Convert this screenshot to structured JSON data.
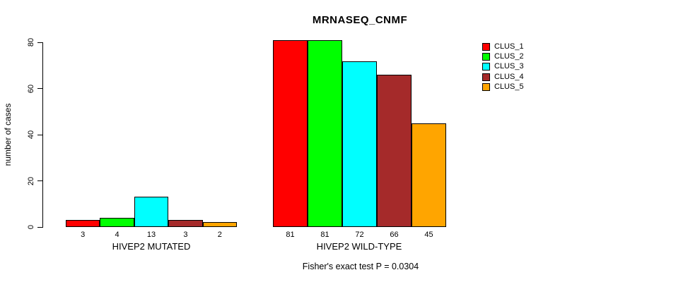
{
  "chart_data": {
    "type": "bar",
    "title": "MRNASEQ_CNMF",
    "ylabel": "number of cases",
    "xlabel": "",
    "ylim": [
      0,
      80
    ],
    "yticks": [
      0,
      20,
      40,
      60,
      80
    ],
    "grid": false,
    "legend_position": "right",
    "categories": [
      "HIVEP2 MUTATED",
      "HIVEP2 WILD-TYPE"
    ],
    "series": [
      {
        "name": "CLUS_1",
        "color": "#FF0000",
        "values": [
          3,
          81
        ]
      },
      {
        "name": "CLUS_2",
        "color": "#00FF00",
        "values": [
          4,
          81
        ]
      },
      {
        "name": "CLUS_3",
        "color": "#00FFFF",
        "values": [
          13,
          72
        ]
      },
      {
        "name": "CLUS_4",
        "color": "#A52A2A",
        "values": [
          3,
          66
        ]
      },
      {
        "name": "CLUS_5",
        "color": "#FFA500",
        "values": [
          2,
          45
        ]
      }
    ],
    "bar_value_labels": [
      [
        3,
        4,
        13,
        3,
        2
      ],
      [
        81,
        81,
        72,
        66,
        45
      ]
    ],
    "annotation": "Fisher's exact test P = 0.0304"
  }
}
